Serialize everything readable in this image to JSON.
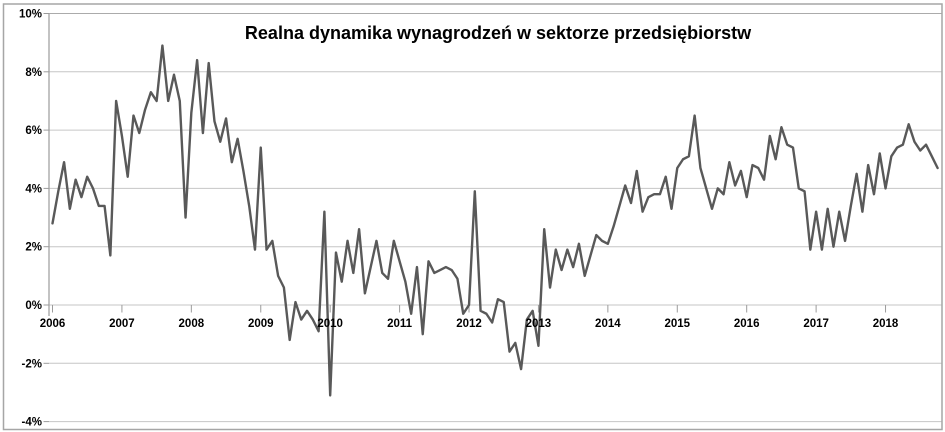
{
  "style": {
    "background": "#ffffff",
    "line_color": "#595959",
    "grid_color": "#c6c6c6",
    "top_grid_color": "#ababab",
    "axis_color": "#9b9b9b",
    "border_color": "#a6a6a6",
    "text_color": "#000000"
  },
  "chart_data": {
    "type": "line",
    "title": "Realna dynamika wynagrodzeń w sektorze przedsiębiorstw",
    "unit": "%",
    "frequency": "monthly",
    "start": "2006-01",
    "end": "2018-10",
    "x_tick_labels": [
      "2006",
      "2007",
      "2008",
      "2009",
      "2010",
      "2011",
      "2012",
      "2013",
      "2014",
      "2015",
      "2016",
      "2017",
      "2018"
    ],
    "y_tick_labels": [
      "10%",
      "8%",
      "6%",
      "4%",
      "2%",
      "0%",
      "-2%",
      "-4%"
    ],
    "y_tick_values": [
      10,
      8,
      6,
      4,
      2,
      0,
      -2,
      -4
    ],
    "ylim": [
      -4,
      10
    ],
    "grid": true,
    "legend": false,
    "series": [
      {
        "name": "Realna dynamika wynagrodzeń w sektorze przedsiębiorstw (r/r, %)",
        "values": [
          2.8,
          3.9,
          4.9,
          3.3,
          4.3,
          3.7,
          4.4,
          4.0,
          3.4,
          3.4,
          1.7,
          7.0,
          5.8,
          4.4,
          6.5,
          5.9,
          6.7,
          7.3,
          7.0,
          8.9,
          7.0,
          7.9,
          7.0,
          3.0,
          6.6,
          8.4,
          5.9,
          8.3,
          6.3,
          5.6,
          6.4,
          4.9,
          5.7,
          4.6,
          3.4,
          1.9,
          5.4,
          1.9,
          2.2,
          1.0,
          0.6,
          -1.2,
          0.1,
          -0.5,
          -0.2,
          -0.5,
          -0.9,
          3.2,
          -3.1,
          1.8,
          0.8,
          2.2,
          1.1,
          2.6,
          0.4,
          1.3,
          2.2,
          1.1,
          0.9,
          2.2,
          1.5,
          0.8,
          -0.3,
          1.3,
          -1.0,
          1.5,
          1.1,
          1.2,
          1.3,
          1.2,
          0.9,
          -0.3,
          0.0,
          3.9,
          -0.2,
          -0.3,
          -0.6,
          0.2,
          0.1,
          -1.6,
          -1.3,
          -2.2,
          -0.5,
          -0.2,
          -1.4,
          2.6,
          0.6,
          1.9,
          1.2,
          1.9,
          1.3,
          2.1,
          1.0,
          1.7,
          2.4,
          2.2,
          2.1,
          2.7,
          3.4,
          4.1,
          3.5,
          4.6,
          3.2,
          3.7,
          3.8,
          3.8,
          4.4,
          3.3,
          4.7,
          5.0,
          5.1,
          6.5,
          4.7,
          4.0,
          3.3,
          4.0,
          3.8,
          4.9,
          4.1,
          4.6,
          3.7,
          4.8,
          4.7,
          4.3,
          5.8,
          5.0,
          6.1,
          5.5,
          5.4,
          4.0,
          3.9,
          1.9,
          3.2,
          1.9,
          3.3,
          2.0,
          3.2,
          2.2,
          3.4,
          4.5,
          3.2,
          4.8,
          3.8,
          5.2,
          4.0,
          5.1,
          5.4,
          5.5,
          6.2,
          5.6,
          5.3,
          5.5,
          5.1,
          4.7
        ]
      }
    ]
  }
}
